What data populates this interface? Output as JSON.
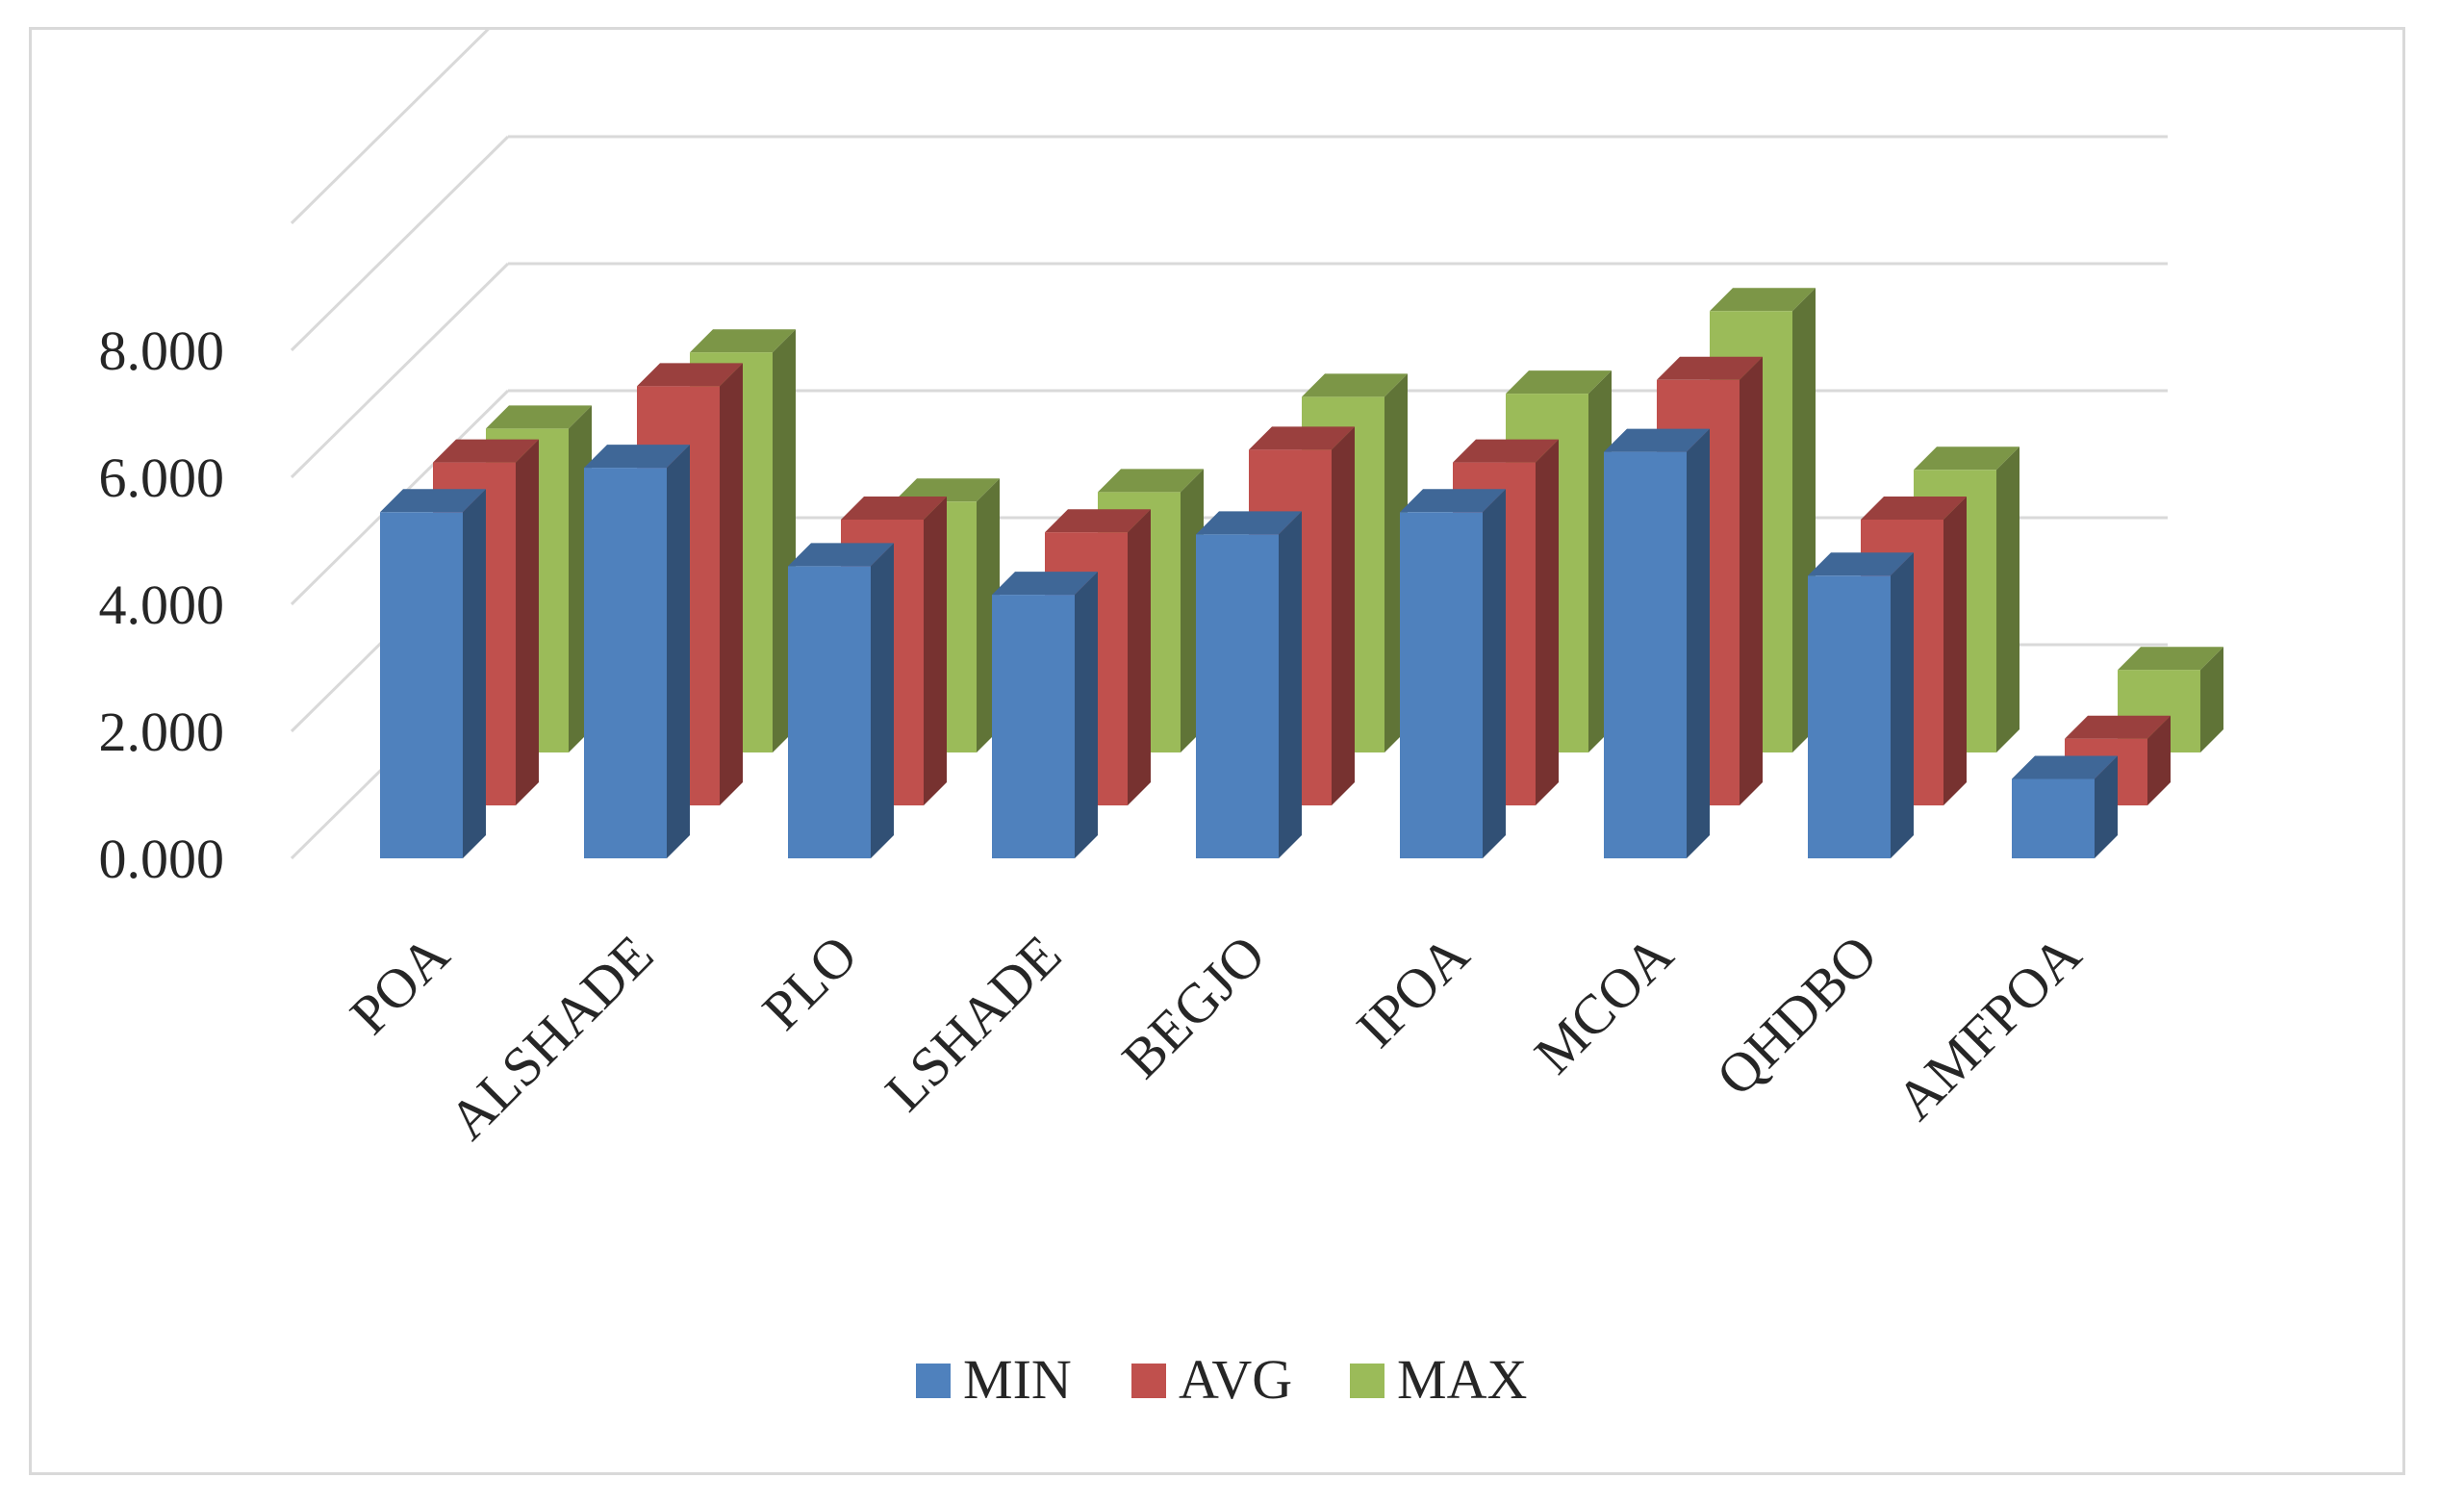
{
  "chart_data": {
    "type": "bar",
    "style": "3d-clustered-depth",
    "title": "",
    "xlabel": "",
    "ylabel": "",
    "ylim": [
      0,
      10
    ],
    "yticks": [
      "0.000",
      "2.000",
      "4.000",
      "6.000",
      "8.000"
    ],
    "yticks_values": [
      0,
      2,
      4,
      6,
      8
    ],
    "categories": [
      "POA",
      "ALSHADE",
      "PLO",
      "LSHADE",
      "BEGJO",
      "IPOA",
      "MCOA",
      "QHDBO",
      "AMFPOA"
    ],
    "series": [
      {
        "name": "MIN",
        "color": "#4f81bd",
        "values": [
          5.45,
          6.15,
          4.6,
          4.15,
          5.1,
          5.45,
          6.4,
          4.45,
          1.25
        ]
      },
      {
        "name": "AVG",
        "color": "#c0504d",
        "values": [
          5.4,
          6.6,
          4.5,
          4.3,
          5.6,
          5.4,
          6.7,
          4.5,
          1.05
        ]
      },
      {
        "name": "MAX",
        "color": "#9bbb59",
        "values": [
          5.1,
          6.3,
          3.95,
          4.1,
          5.6,
          5.65,
          6.95,
          4.45,
          1.3
        ]
      }
    ],
    "grid": true,
    "legend_position": "bottom"
  },
  "legend": {
    "items": [
      {
        "label": "MIN",
        "color": "#4f81bd"
      },
      {
        "label": "AVG",
        "color": "#c0504d"
      },
      {
        "label": "MAX",
        "color": "#9bbb59"
      }
    ]
  }
}
